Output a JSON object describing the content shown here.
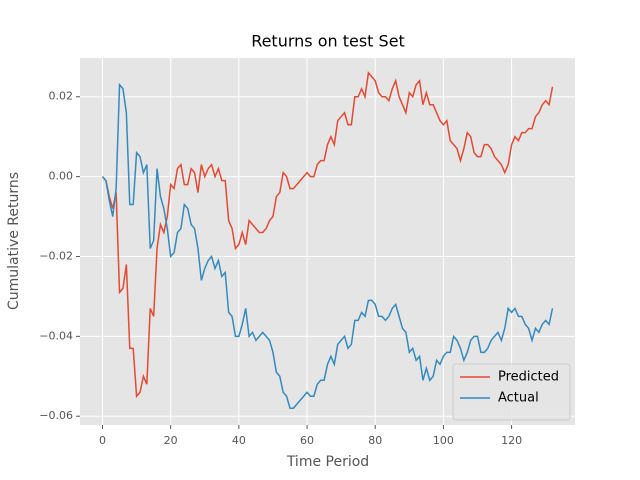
{
  "chart_data": {
    "type": "line",
    "title": "Returns on test Set",
    "x_label": "Time Period",
    "y_label": "Cumulative Returns",
    "x": [
      0,
      1,
      2,
      3,
      4,
      5,
      6,
      7,
      8,
      9,
      10,
      11,
      12,
      13,
      14,
      15,
      16,
      17,
      18,
      19,
      20,
      21,
      22,
      23,
      24,
      25,
      26,
      27,
      28,
      29,
      30,
      31,
      32,
      33,
      34,
      35,
      36,
      37,
      38,
      39,
      40,
      41,
      42,
      43,
      44,
      45,
      46,
      47,
      48,
      49,
      50,
      51,
      52,
      53,
      54,
      55,
      56,
      57,
      58,
      59,
      60,
      61,
      62,
      63,
      64,
      65,
      66,
      67,
      68,
      69,
      70,
      71,
      72,
      73,
      74,
      75,
      76,
      77,
      78,
      79,
      80,
      81,
      82,
      83,
      84,
      85,
      86,
      87,
      88,
      89,
      90,
      91,
      92,
      93,
      94,
      95,
      96,
      97,
      98,
      99,
      100,
      101,
      102,
      103,
      104,
      105,
      106,
      107,
      108,
      109,
      110,
      111,
      112,
      113,
      114,
      115,
      116,
      117,
      118,
      119,
      120,
      121,
      122,
      123,
      124,
      125,
      126,
      127,
      128,
      129,
      130,
      131,
      132
    ],
    "series": [
      {
        "name": "Predicted",
        "color": "#E24A33",
        "values": [
          0,
          -0.001,
          -0.005,
          -0.008,
          -0.004,
          -0.029,
          -0.028,
          -0.022,
          -0.043,
          -0.043,
          -0.055,
          -0.054,
          -0.05,
          -0.052,
          -0.033,
          -0.035,
          -0.018,
          -0.012,
          -0.014,
          -0.01,
          -0.002,
          -0.003,
          0.002,
          0.003,
          -0.002,
          -0.002,
          0.002,
          0.001,
          -0.004,
          0.003,
          0,
          0.002,
          0.003,
          0,
          0.002,
          -0.001,
          -0.001,
          -0.011,
          -0.013,
          -0.018,
          -0.017,
          -0.014,
          -0.017,
          -0.011,
          -0.012,
          -0.013,
          -0.014,
          -0.014,
          -0.013,
          -0.011,
          -0.01,
          -0.005,
          -0.004,
          0.001,
          0,
          -0.003,
          -0.003,
          -0.002,
          -0.001,
          0,
          0.001,
          0,
          0,
          0.003,
          0.004,
          0.004,
          0.008,
          0.01,
          0.008,
          0.014,
          0.015,
          0.016,
          0.013,
          0.013,
          0.02,
          0.02,
          0.022,
          0.02,
          0.026,
          0.025,
          0.024,
          0.021,
          0.02,
          0.02,
          0.019,
          0.022,
          0.024,
          0.02,
          0.018,
          0.016,
          0.021,
          0.02,
          0.023,
          0.024,
          0.018,
          0.021,
          0.018,
          0.018,
          0.016,
          0.014,
          0.013,
          0.014,
          0.009,
          0.008,
          0.007,
          0.004,
          0.007,
          0.011,
          0.01,
          0.006,
          0.005,
          0.005,
          0.008,
          0.008,
          0.007,
          0.005,
          0.004,
          0.003,
          0.001,
          0.003,
          0.008,
          0.01,
          0.009,
          0.011,
          0.011,
          0.012,
          0.012,
          0.015,
          0.016,
          0.018,
          0.019,
          0.018,
          0.0225
        ]
      },
      {
        "name": "Actual",
        "color": "#348ABD",
        "values": [
          0,
          -0.001,
          -0.006,
          -0.01,
          -0.003,
          0.023,
          0.022,
          0.016,
          -0.007,
          -0.007,
          0.006,
          0.005,
          0.001,
          0.003,
          -0.018,
          -0.016,
          0.002,
          -0.005,
          -0.008,
          -0.013,
          -0.02,
          -0.019,
          -0.014,
          -0.013,
          -0.007,
          -0.008,
          -0.012,
          -0.013,
          -0.018,
          -0.026,
          -0.023,
          -0.021,
          -0.02,
          -0.023,
          -0.021,
          -0.025,
          -0.024,
          -0.034,
          -0.035,
          -0.04,
          -0.04,
          -0.037,
          -0.033,
          -0.04,
          -0.039,
          -0.041,
          -0.04,
          -0.039,
          -0.04,
          -0.041,
          -0.044,
          -0.049,
          -0.05,
          -0.054,
          -0.055,
          -0.058,
          -0.058,
          -0.057,
          -0.056,
          -0.055,
          -0.054,
          -0.055,
          -0.055,
          -0.052,
          -0.051,
          -0.051,
          -0.047,
          -0.045,
          -0.047,
          -0.042,
          -0.041,
          -0.04,
          -0.043,
          -0.042,
          -0.036,
          -0.036,
          -0.034,
          -0.035,
          -0.031,
          -0.031,
          -0.032,
          -0.035,
          -0.035,
          -0.036,
          -0.035,
          -0.033,
          -0.032,
          -0.035,
          -0.038,
          -0.039,
          -0.044,
          -0.043,
          -0.046,
          -0.045,
          -0.051,
          -0.048,
          -0.051,
          -0.05,
          -0.046,
          -0.047,
          -0.045,
          -0.044,
          -0.044,
          -0.04,
          -0.041,
          -0.043,
          -0.046,
          -0.044,
          -0.041,
          -0.04,
          -0.04,
          -0.044,
          -0.044,
          -0.043,
          -0.041,
          -0.04,
          -0.039,
          -0.041,
          -0.038,
          -0.033,
          -0.034,
          -0.033,
          -0.035,
          -0.035,
          -0.037,
          -0.038,
          -0.041,
          -0.038,
          -0.039,
          -0.037,
          -0.036,
          -0.037,
          -0.033
        ]
      }
    ],
    "xlim": [
      -6.6,
      138.6
    ],
    "xticks": [
      0,
      20,
      40,
      60,
      80,
      100,
      120
    ],
    "ylim": [
      -0.0622,
      0.0297
    ],
    "yticks": [
      {
        "value": -0.06,
        "label": "−0.06"
      },
      {
        "value": -0.04,
        "label": "−0.04"
      },
      {
        "value": -0.02,
        "label": "−0.02"
      },
      {
        "value": 0,
        "label": "0.00"
      },
      0.02
    ],
    "grid": true,
    "legend": "lower right"
  }
}
